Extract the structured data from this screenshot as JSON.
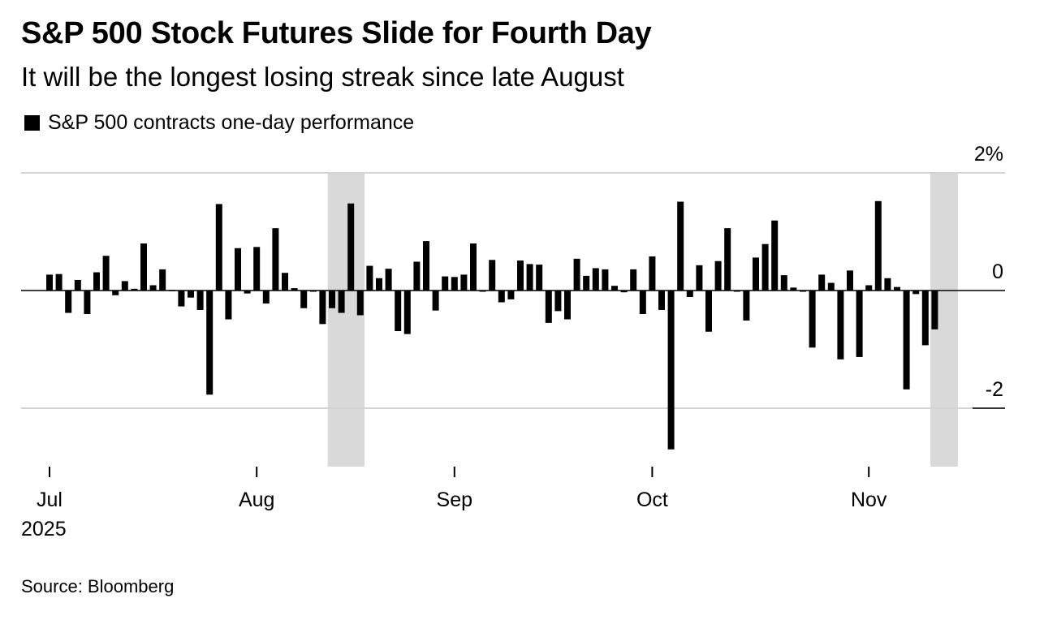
{
  "chart_data": {
    "type": "bar",
    "title": "S&P 500 Stock Futures Slide for Fourth Day",
    "subtitle": "It will be the longest losing streak since late August",
    "legend": [
      "S&P 500 contracts one-day performance"
    ],
    "source": "Source: Bloomberg",
    "y_unit": "%",
    "ylim": [
      -3,
      2
    ],
    "y_ticks": [
      {
        "value": 2,
        "label": "2%"
      },
      {
        "value": 0,
        "label": "0"
      },
      {
        "value": -2,
        "label": "-2"
      }
    ],
    "x_ticks": [
      {
        "label": "Jul",
        "sublabel": "2025",
        "index": 0
      },
      {
        "label": "Aug",
        "index": 22
      },
      {
        "label": "Sep",
        "index": 43
      },
      {
        "label": "Oct",
        "index": 64
      },
      {
        "label": "Nov",
        "index": 87
      }
    ],
    "highlight_ranges": [
      {
        "start_index": 30,
        "end_index": 33
      },
      {
        "start_index": 94,
        "end_index": 96
      }
    ],
    "values": [
      0.27,
      0.28,
      -0.38,
      0.18,
      -0.4,
      0.31,
      0.59,
      -0.08,
      0.16,
      0.03,
      0.8,
      0.09,
      0.36,
      0.01,
      -0.27,
      -0.12,
      -0.33,
      -1.77,
      1.47,
      -0.49,
      0.72,
      -0.05,
      0.74,
      -0.22,
      1.06,
      0.3,
      0.04,
      -0.3,
      0.0,
      -0.57,
      -0.3,
      -0.38,
      1.48,
      -0.42,
      0.42,
      0.21,
      0.37,
      -0.69,
      -0.74,
      0.49,
      0.84,
      -0.34,
      0.24,
      0.23,
      0.27,
      0.8,
      -0.02,
      0.52,
      -0.2,
      -0.15,
      0.51,
      0.45,
      0.44,
      -0.55,
      -0.35,
      -0.49,
      0.54,
      0.25,
      0.38,
      0.36,
      0.08,
      -0.03,
      0.36,
      -0.4,
      0.58,
      -0.33,
      -2.7,
      1.51,
      -0.11,
      0.43,
      -0.7,
      0.5,
      1.06,
      0.0,
      -0.51,
      0.56,
      0.79,
      1.19,
      0.26,
      0.05,
      -0.02,
      -0.97,
      0.27,
      0.13,
      -1.17,
      0.34,
      -1.13,
      0.09,
      1.52,
      0.21,
      0.06,
      -1.68,
      -0.06,
      -0.93,
      -0.66
    ]
  }
}
